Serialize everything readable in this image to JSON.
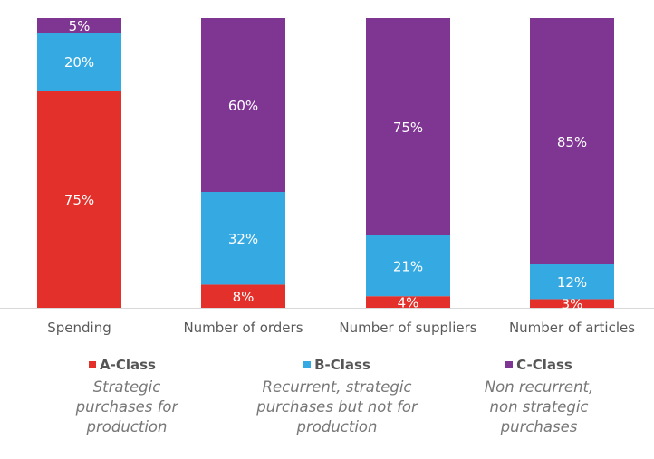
{
  "chart_data": {
    "type": "bar",
    "stacked": true,
    "percent_stacked": true,
    "categories": [
      "Spending",
      "Number of orders",
      "Number of suppliers",
      "Number of articles"
    ],
    "series": [
      {
        "name": "A-Class",
        "values": [
          75,
          8,
          4,
          3
        ],
        "color": "#E3302A",
        "labels": [
          "75%",
          "8%",
          "4%",
          "3%"
        ]
      },
      {
        "name": "B-Class",
        "values": [
          20,
          32,
          21,
          12
        ],
        "color": "#35A9E1",
        "labels": [
          "20%",
          "32%",
          "21%",
          "12%"
        ]
      },
      {
        "name": "C-Class",
        "values": [
          5,
          60,
          75,
          85
        ],
        "color": "#7F3592",
        "labels": [
          "5%",
          "60%",
          "75%",
          "85%"
        ]
      }
    ],
    "ylim": [
      0,
      100
    ],
    "grid": false,
    "legend_position": "bottom"
  },
  "legend": [
    {
      "label": "A-Class",
      "description": "Strategic purchases for production"
    },
    {
      "label": "B-Class",
      "description": "Recurrent, strategic purchases but not for production"
    },
    {
      "label": "C-Class",
      "description": "Non recurrent, non strategic purchases"
    }
  ]
}
